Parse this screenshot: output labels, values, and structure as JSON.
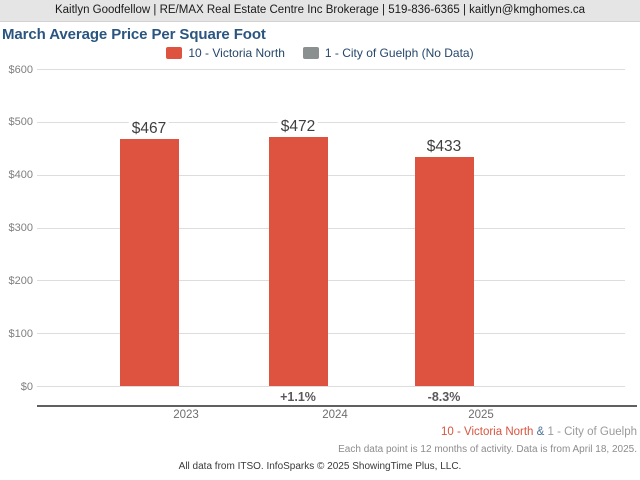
{
  "header": {
    "text": "Kaitlyn Goodfellow | RE/MAX Real Estate Centre Inc Brokerage | 519-836-6365 | kaitlyn@kmghomes.ca"
  },
  "title": "March Average Price Per Square Foot",
  "legend": [
    {
      "label": "10 - Victoria North",
      "color": "#de5340"
    },
    {
      "label": "1 - City of Guelph (No Data)",
      "color": "#8a8f8f"
    }
  ],
  "chart_data": {
    "type": "bar",
    "title": "March Average Price Per Square Foot",
    "categories": [
      "2023",
      "2024",
      "2025"
    ],
    "series": [
      {
        "name": "10 - Victoria North",
        "color": "#de5340",
        "values": [
          467,
          472,
          433
        ],
        "value_labels": [
          "$467",
          "$472",
          "$433"
        ],
        "pct_change": [
          null,
          "+1.1%",
          "-8.3%"
        ]
      },
      {
        "name": "1 - City of Guelph",
        "color": "#8a8f8f",
        "values": [
          null,
          null,
          null
        ],
        "note": "No Data"
      }
    ],
    "ylabel": "",
    "xlabel": "",
    "ylim": [
      0,
      600
    ],
    "y_ticks": [
      "$0",
      "$100",
      "$200",
      "$300",
      "$400",
      "$500",
      "$600"
    ],
    "grid": true,
    "legend_position": "top"
  },
  "footer": {
    "series_note": {
      "series1": "10 - Victoria North",
      "amp": " & ",
      "series2": "1 - City of Guelph"
    },
    "data_note": "Each data point is 12 months of activity. Data is from April 18, 2025.",
    "attribution": "All data from ITSO. InfoSparks © 2025 ShowingTime Plus, LLC."
  },
  "colors": {
    "bar": "#de5340",
    "no_data_series": "#8a8f8f",
    "title": "#2a5580",
    "header_bg": "#e5e5e5",
    "gridline": "#dddddd",
    "axis_line": "#606060"
  }
}
